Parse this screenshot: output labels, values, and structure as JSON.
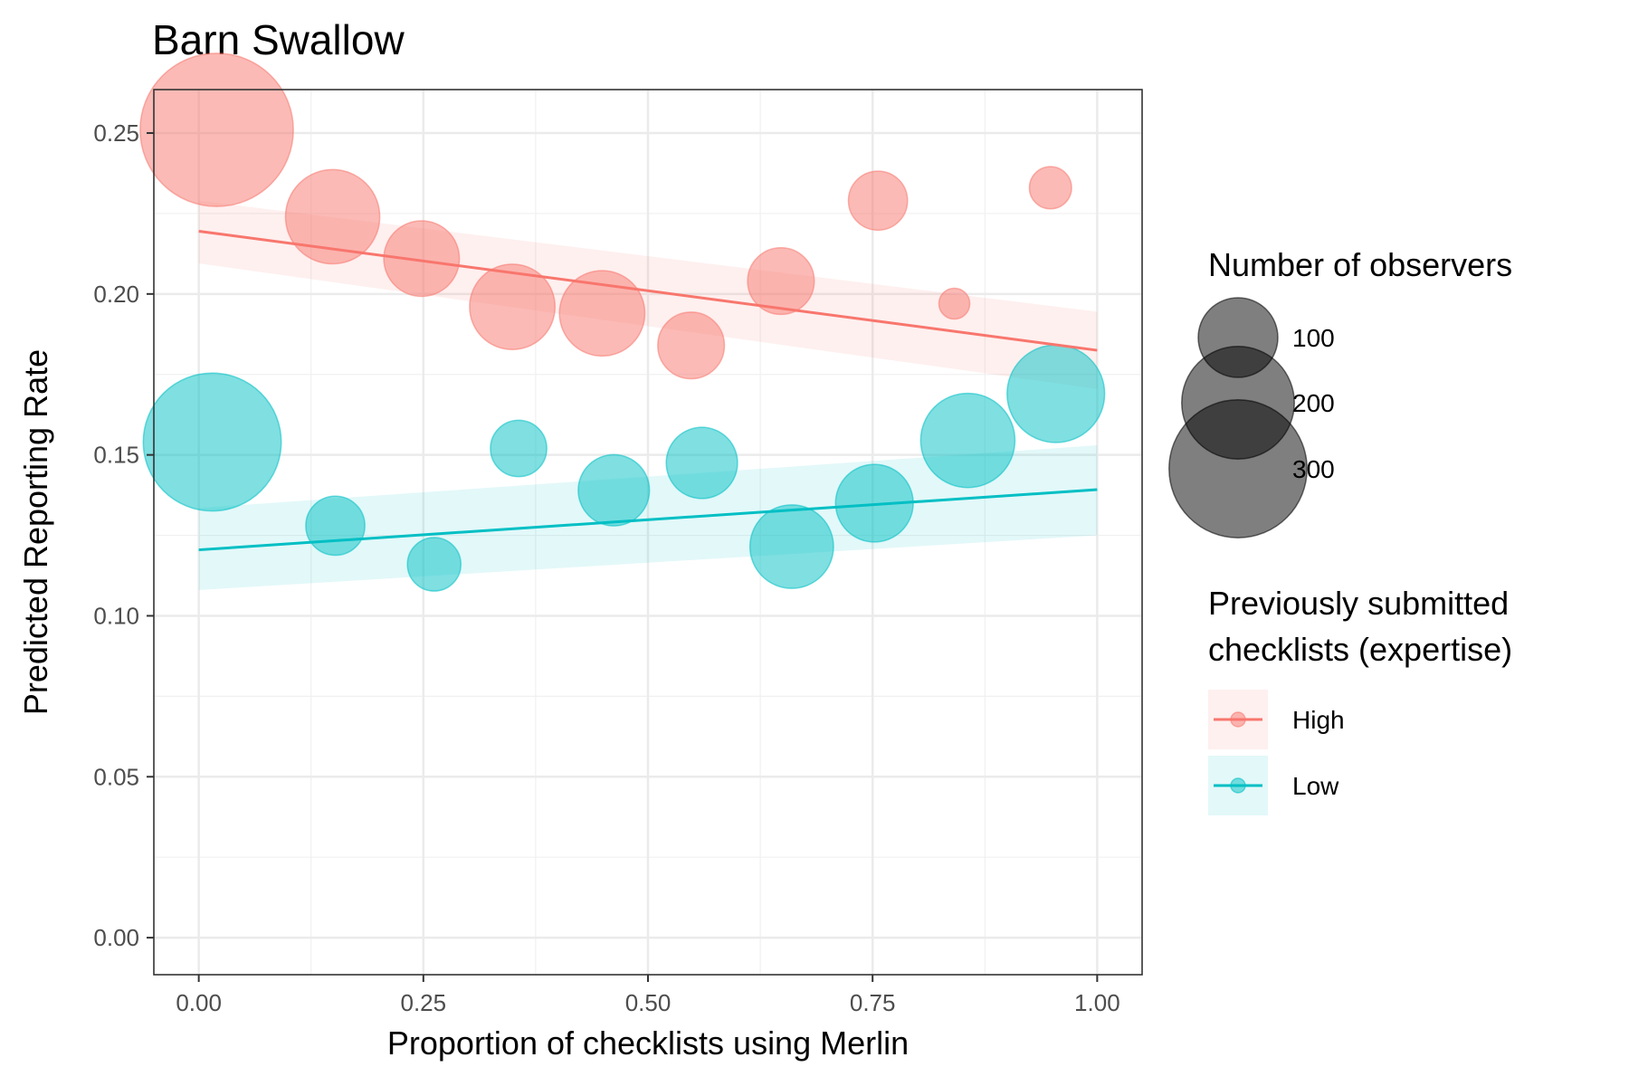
{
  "chart_data": {
    "type": "scatter",
    "title": "Barn Swallow",
    "xlabel": "Proportion of checklists using Merlin",
    "ylabel": "Predicted Reporting Rate",
    "xlim": [
      -0.05,
      1.05
    ],
    "ylim": [
      -0.0115,
      0.2635
    ],
    "x_ticks": [
      0.0,
      0.25,
      0.5,
      0.75,
      1.0
    ],
    "x_tick_labels": [
      "0.00",
      "0.25",
      "0.50",
      "0.75",
      "1.00"
    ],
    "y_ticks": [
      0.0,
      0.05,
      0.1,
      0.15,
      0.2,
      0.25
    ],
    "y_tick_labels": [
      "0.00",
      "0.05",
      "0.10",
      "0.15",
      "0.20",
      "0.25"
    ],
    "grid": true,
    "legend_placement": "right",
    "size_legend": {
      "title": "Number of observers",
      "entries": [
        {
          "value": 100,
          "label": "100"
        },
        {
          "value": 200,
          "label": "200"
        },
        {
          "value": 300,
          "label": "300"
        }
      ]
    },
    "color_legend": {
      "title_lines": [
        "Previously submitted",
        "checklists (expertise)"
      ]
    },
    "series": [
      {
        "name": "High",
        "color": "#F8766D",
        "points": [
          {
            "x": 0.02,
            "y": 0.251,
            "n": 370
          },
          {
            "x": 0.149,
            "y": 0.224,
            "n": 140
          },
          {
            "x": 0.248,
            "y": 0.211,
            "n": 90
          },
          {
            "x": 0.349,
            "y": 0.196,
            "n": 115
          },
          {
            "x": 0.449,
            "y": 0.194,
            "n": 115
          },
          {
            "x": 0.548,
            "y": 0.184,
            "n": 70
          },
          {
            "x": 0.648,
            "y": 0.204,
            "n": 70
          },
          {
            "x": 0.756,
            "y": 0.229,
            "n": 55
          },
          {
            "x": 0.841,
            "y": 0.197,
            "n": 15
          },
          {
            "x": 0.948,
            "y": 0.233,
            "n": 28
          }
        ],
        "fit": {
          "x": [
            0.0,
            1.0
          ],
          "y": [
            0.2195,
            0.1825
          ]
        },
        "band": {
          "x": [
            0.0,
            1.0
          ],
          "lower": [
            0.2095,
            0.1705
          ],
          "upper": [
            0.229,
            0.1945
          ]
        }
      },
      {
        "name": "Low",
        "color": "#00BFC4",
        "points": [
          {
            "x": 0.015,
            "y": 0.154,
            "n": 300
          },
          {
            "x": 0.152,
            "y": 0.128,
            "n": 55
          },
          {
            "x": 0.262,
            "y": 0.116,
            "n": 45
          },
          {
            "x": 0.356,
            "y": 0.152,
            "n": 50
          },
          {
            "x": 0.462,
            "y": 0.139,
            "n": 80
          },
          {
            "x": 0.56,
            "y": 0.1475,
            "n": 80
          },
          {
            "x": 0.66,
            "y": 0.1215,
            "n": 110
          },
          {
            "x": 0.752,
            "y": 0.135,
            "n": 95
          },
          {
            "x": 0.856,
            "y": 0.1545,
            "n": 140
          },
          {
            "x": 0.954,
            "y": 0.169,
            "n": 150
          }
        ],
        "fit": {
          "x": [
            0.0,
            1.0
          ],
          "y": [
            0.1205,
            0.1392
          ]
        },
        "band": {
          "x": [
            0.0,
            1.0
          ],
          "lower": [
            0.108,
            0.125
          ],
          "upper": [
            0.1335,
            0.153
          ]
        }
      }
    ]
  }
}
